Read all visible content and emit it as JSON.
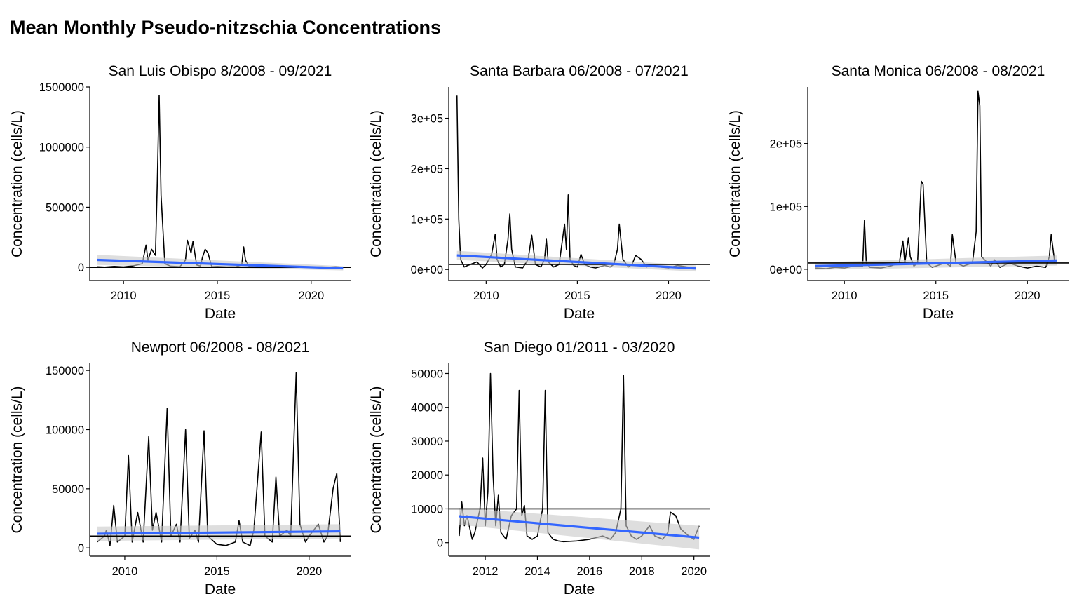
{
  "page_title": "Mean Monthly Pseudo-nitzschia Concentrations",
  "colors": {
    "series": "#000000",
    "trend": "#3366FF",
    "ribbon": "#C8C8C8",
    "threshold": "#000000"
  },
  "chart_data": [
    {
      "type": "line",
      "title": "San Luis Obispo 8/2008 - 09/2021",
      "xlabel": "Date",
      "ylabel": "Concentration (cells/L)",
      "xlim": [
        2008.2,
        2022.1
      ],
      "ylim": [
        -110000,
        1500000
      ],
      "xticks": [
        {
          "v": 2010,
          "label": "2010"
        },
        {
          "v": 2015,
          "label": "2015"
        },
        {
          "v": 2020,
          "label": "2020"
        }
      ],
      "yticks": [
        {
          "v": 0,
          "label": "0"
        },
        {
          "v": 500000,
          "label": "500000"
        },
        {
          "v": 1000000,
          "label": "1000000"
        },
        {
          "v": 1500000,
          "label": "1500000"
        }
      ],
      "threshold": 0,
      "trend": {
        "x": [
          2008.6,
          2021.7
        ],
        "y": [
          62000,
          -8000
        ],
        "band": [
          42000,
          18000
        ]
      },
      "series": [
        {
          "x": [
            2008.6,
            2009.0,
            2009.5,
            2010.0,
            2010.5,
            2011.0,
            2011.2,
            2011.3,
            2011.5,
            2011.7,
            2011.8,
            2011.9,
            2012.0,
            2012.2,
            2012.5,
            2013.0,
            2013.3,
            2013.4,
            2013.6,
            2013.7,
            2013.9,
            2014.1,
            2014.2,
            2014.35,
            2014.5,
            2014.7,
            2015.0,
            2015.5,
            2016.0,
            2016.3,
            2016.4,
            2016.5,
            2016.7,
            2017.0,
            2017.5,
            2018.0,
            2018.5,
            2019.0,
            2019.5,
            2020.0,
            2020.5,
            2021.0,
            2021.3,
            2021.7
          ],
          "y": [
            5000,
            2000,
            8000,
            3000,
            12000,
            30000,
            185000,
            60000,
            150000,
            100000,
            700000,
            1430000,
            600000,
            30000,
            10000,
            5000,
            60000,
            225000,
            120000,
            215000,
            20000,
            10000,
            80000,
            150000,
            120000,
            5000,
            8000,
            3000,
            5000,
            20000,
            170000,
            60000,
            5000,
            3000,
            8000,
            2000,
            5000,
            3000,
            2000,
            1000,
            3000,
            2000,
            5000,
            1000
          ]
        }
      ]
    },
    {
      "type": "line",
      "title": "Santa Barbara 06/2008 - 07/2021",
      "xlabel": "Date",
      "ylabel": "Concentration (cells/L)",
      "xlim": [
        2007.95,
        2022.25
      ],
      "ylim": [
        -22000,
        362000
      ],
      "xticks": [
        {
          "v": 2010,
          "label": "2010"
        },
        {
          "v": 2015,
          "label": "2015"
        },
        {
          "v": 2020,
          "label": "2020"
        }
      ],
      "yticks": [
        {
          "v": 0,
          "label": "0e+00"
        },
        {
          "v": 100000,
          "label": "1e+05"
        },
        {
          "v": 200000,
          "label": "2e+05"
        },
        {
          "v": 300000,
          "label": "3e+05"
        }
      ],
      "threshold": 10000,
      "trend": {
        "x": [
          2008.4,
          2021.5
        ],
        "y": [
          28000,
          2000
        ],
        "band": [
          9000,
          6000
        ]
      },
      "series": [
        {
          "x": [
            2008.4,
            2008.5,
            2008.6,
            2008.8,
            2009.0,
            2009.5,
            2009.8,
            2010.0,
            2010.3,
            2010.5,
            2010.6,
            2010.8,
            2011.0,
            2011.2,
            2011.3,
            2011.4,
            2011.6,
            2012.0,
            2012.3,
            2012.5,
            2012.7,
            2013.0,
            2013.2,
            2013.3,
            2013.4,
            2013.7,
            2014.0,
            2014.3,
            2014.4,
            2014.5,
            2014.6,
            2014.8,
            2015.0,
            2015.2,
            2015.4,
            2015.7,
            2016.0,
            2016.5,
            2016.8,
            2017.0,
            2017.2,
            2017.3,
            2017.5,
            2017.8,
            2018.0,
            2018.2,
            2018.5,
            2018.8,
            2019.0,
            2019.5,
            2020.0,
            2020.5,
            2021.0,
            2021.5
          ],
          "y": [
            345000,
            100000,
            20000,
            5000,
            8000,
            15000,
            3000,
            10000,
            30000,
            70000,
            20000,
            5000,
            10000,
            60000,
            110000,
            40000,
            5000,
            3000,
            20000,
            68000,
            10000,
            5000,
            20000,
            60000,
            15000,
            5000,
            10000,
            90000,
            40000,
            148000,
            20000,
            8000,
            5000,
            30000,
            10000,
            5000,
            3000,
            8000,
            5000,
            10000,
            40000,
            90000,
            20000,
            5000,
            10000,
            28000,
            20000,
            5000,
            8000,
            5000,
            3000,
            8000,
            5000,
            3000
          ]
        }
      ]
    },
    {
      "type": "line",
      "title": "Santa Monica 06/2008 - 08/2021",
      "xlabel": "Date",
      "ylabel": "Concentration (cells/L)",
      "xlim": [
        2008.0,
        2022.25
      ],
      "ylim": [
        -18000,
        290000
      ],
      "xticks": [
        {
          "v": 2010,
          "label": "2010"
        },
        {
          "v": 2015,
          "label": "2015"
        },
        {
          "v": 2020,
          "label": "2020"
        }
      ],
      "yticks": [
        {
          "v": 0,
          "label": "0e+00"
        },
        {
          "v": 100000,
          "label": "1e+05"
        },
        {
          "v": 200000,
          "label": "2e+05"
        }
      ],
      "threshold": 10000,
      "trend": {
        "x": [
          2008.4,
          2021.6
        ],
        "y": [
          5000,
          14000
        ],
        "band": [
          6000,
          8000
        ]
      },
      "series": [
        {
          "x": [
            2008.4,
            2009.0,
            2009.5,
            2010.0,
            2010.5,
            2011.0,
            2011.1,
            2011.2,
            2011.4,
            2012.0,
            2012.5,
            2013.0,
            2013.2,
            2013.3,
            2013.5,
            2013.6,
            2013.8,
            2014.0,
            2014.2,
            2014.3,
            2014.5,
            2014.8,
            2015.0,
            2015.5,
            2015.8,
            2015.9,
            2016.1,
            2016.5,
            2017.0,
            2017.2,
            2017.3,
            2017.4,
            2017.5,
            2018.0,
            2018.2,
            2018.5,
            2019.0,
            2019.5,
            2020.0,
            2020.5,
            2021.0,
            2021.2,
            2021.3,
            2021.5
          ],
          "y": [
            2000,
            1000,
            3000,
            2000,
            5000,
            5000,
            78000,
            10000,
            3000,
            2000,
            5000,
            10000,
            45000,
            10000,
            50000,
            20000,
            5000,
            10000,
            140000,
            135000,
            10000,
            3000,
            5000,
            10000,
            5000,
            55000,
            10000,
            5000,
            10000,
            60000,
            283000,
            260000,
            20000,
            5000,
            15000,
            3000,
            10000,
            5000,
            2000,
            5000,
            3000,
            20000,
            55000,
            10000
          ]
        }
      ]
    },
    {
      "type": "line",
      "title": "Newport 06/2008 - 08/2021",
      "xlabel": "Date",
      "ylabel": "Concentration (cells/L)",
      "xlim": [
        2008.1,
        2022.25
      ],
      "ylim": [
        -7000,
        156000
      ],
      "xticks": [
        {
          "v": 2010,
          "label": "2010"
        },
        {
          "v": 2015,
          "label": "2015"
        },
        {
          "v": 2020,
          "label": "2020"
        }
      ],
      "yticks": [
        {
          "v": 0,
          "label": "0"
        },
        {
          "v": 50000,
          "label": "50000"
        },
        {
          "v": 100000,
          "label": "100000"
        },
        {
          "v": 150000,
          "label": "150000"
        }
      ],
      "threshold": 10000,
      "trend": {
        "x": [
          2008.5,
          2021.7
        ],
        "y": [
          12000,
          14000
        ],
        "band": [
          6000,
          6000
        ]
      },
      "series": [
        {
          "x": [
            2008.5,
            2008.9,
            2009.0,
            2009.2,
            2009.4,
            2009.6,
            2010.0,
            2010.2,
            2010.4,
            2010.7,
            2011.0,
            2011.3,
            2011.5,
            2011.7,
            2012.0,
            2012.3,
            2012.5,
            2012.8,
            2013.0,
            2013.3,
            2013.5,
            2013.8,
            2014.0,
            2014.3,
            2014.5,
            2015.0,
            2015.5,
            2016.0,
            2016.2,
            2016.4,
            2016.8,
            2017.0,
            2017.4,
            2017.6,
            2018.0,
            2018.2,
            2018.4,
            2018.8,
            2019.0,
            2019.3,
            2019.5,
            2019.8,
            2020.0,
            2020.5,
            2020.8,
            2021.0,
            2021.3,
            2021.5,
            2021.7
          ],
          "y": [
            5000,
            10000,
            15000,
            2000,
            36000,
            5000,
            10000,
            78000,
            5000,
            30000,
            5000,
            94000,
            15000,
            30000,
            5000,
            118000,
            10000,
            20000,
            5000,
            100000,
            8000,
            15000,
            5000,
            99000,
            10000,
            3000,
            2000,
            5000,
            23000,
            5000,
            2000,
            15000,
            98000,
            10000,
            5000,
            60000,
            10000,
            15000,
            10000,
            148000,
            20000,
            5000,
            10000,
            20000,
            5000,
            10000,
            50000,
            63000,
            5000
          ]
        }
      ]
    },
    {
      "type": "line",
      "title": "San Diego 01/2011 - 03/2020",
      "xlabel": "Date",
      "ylabel": "Concentration (cells/L)",
      "xlim": [
        2010.6,
        2020.6
      ],
      "ylim": [
        -4000,
        53000
      ],
      "xticks": [
        {
          "v": 2012,
          "label": "2012"
        },
        {
          "v": 2014,
          "label": "2014"
        },
        {
          "v": 2016,
          "label": "2016"
        },
        {
          "v": 2018,
          "label": "2018"
        },
        {
          "v": 2020,
          "label": "2020"
        }
      ],
      "yticks": [
        {
          "v": 0,
          "label": "0"
        },
        {
          "v": 10000,
          "label": "10000"
        },
        {
          "v": 20000,
          "label": "20000"
        },
        {
          "v": 30000,
          "label": "30000"
        },
        {
          "v": 40000,
          "label": "40000"
        },
        {
          "v": 50000,
          "label": "50000"
        }
      ],
      "threshold": 10000,
      "trend": {
        "x": [
          2011.0,
          2020.2
        ],
        "y": [
          7800,
          1500
        ],
        "band": [
          2500,
          3500
        ]
      },
      "series": [
        {
          "x": [
            2011.0,
            2011.1,
            2011.2,
            2011.3,
            2011.5,
            2011.6,
            2011.8,
            2011.9,
            2012.0,
            2012.1,
            2012.2,
            2012.3,
            2012.4,
            2012.5,
            2012.6,
            2012.8,
            2013.0,
            2013.2,
            2013.3,
            2013.4,
            2013.5,
            2013.6,
            2013.8,
            2014.0,
            2014.2,
            2014.3,
            2014.4,
            2014.6,
            2014.8,
            2015.0,
            2015.5,
            2016.0,
            2016.5,
            2016.8,
            2017.0,
            2017.2,
            2017.3,
            2017.4,
            2017.6,
            2017.8,
            2018.0,
            2018.3,
            2018.5,
            2018.8,
            2019.0,
            2019.1,
            2019.3,
            2019.5,
            2019.8,
            2020.0,
            2020.2
          ],
          "y": [
            2000,
            12000,
            5000,
            8000,
            1000,
            3000,
            10000,
            25000,
            5000,
            15000,
            50000,
            20000,
            5000,
            14000,
            3000,
            1000,
            8000,
            10000,
            45000,
            8000,
            11000,
            2000,
            1000,
            2000,
            10000,
            45000,
            3000,
            1000,
            500,
            300,
            500,
            1000,
            2000,
            1000,
            3000,
            10000,
            49500,
            5000,
            2000,
            1000,
            2000,
            5000,
            2000,
            1000,
            3000,
            9000,
            8000,
            4000,
            2000,
            1000,
            5000
          ]
        }
      ]
    }
  ]
}
